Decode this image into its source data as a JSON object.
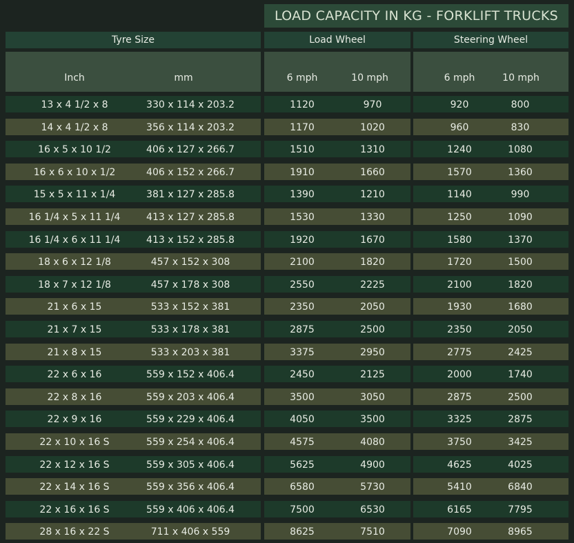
{
  "title": "LOAD CAPACITY IN KG - FORKLIFT TRUCKS",
  "headers": {
    "tyre_size": "Tyre Size",
    "load_wheel": "Load Wheel",
    "steering_wheel": "Steering Wheel"
  },
  "subheaders": {
    "inch": "Inch",
    "mm": "mm",
    "load_6": "6 mph",
    "load_10": "10 mph",
    "steer_6": "6 mph",
    "steer_10": "10 mph"
  },
  "rows": [
    {
      "inch": "13 x 4 1/2 x 8",
      "mm": "330 x 114 x 203.2",
      "load_6": "1120",
      "load_10": "970",
      "steer_6": "920",
      "steer_10": "800"
    },
    {
      "inch": "14 x 4 1/2 x 8",
      "mm": "356 x 114 x 203.2",
      "load_6": "1170",
      "load_10": "1020",
      "steer_6": "960",
      "steer_10": "830"
    },
    {
      "inch": "16 x 5 x 10 1/2",
      "mm": "406 x 127 x 266.7",
      "load_6": "1510",
      "load_10": "1310",
      "steer_6": "1240",
      "steer_10": "1080"
    },
    {
      "inch": "16 x 6 x 10 x 1/2",
      "mm": "406 x 152 x 266.7",
      "load_6": "1910",
      "load_10": "1660",
      "steer_6": "1570",
      "steer_10": "1360"
    },
    {
      "inch": "15 x 5 x 11 x 1/4",
      "mm": "381 x 127 x 285.8",
      "load_6": "1390",
      "load_10": "1210",
      "steer_6": "1140",
      "steer_10": "990"
    },
    {
      "inch": "16 1/4 x 5 x 11 1/4",
      "mm": "413 x 127 x 285.8",
      "load_6": "1530",
      "load_10": "1330",
      "steer_6": "1250",
      "steer_10": "1090"
    },
    {
      "inch": "16 1/4 x 6 x 11 1/4",
      "mm": "413 x 152 x 285.8",
      "load_6": "1920",
      "load_10": "1670",
      "steer_6": "1580",
      "steer_10": "1370"
    },
    {
      "inch": "18 x 6 x 12 1/8",
      "mm": "457 x 152 x 308",
      "load_6": "2100",
      "load_10": "1820",
      "steer_6": "1720",
      "steer_10": "1500"
    },
    {
      "inch": "18 x 7 x 12 1/8",
      "mm": "457 x 178 x 308",
      "load_6": "2550",
      "load_10": "2225",
      "steer_6": "2100",
      "steer_10": "1820"
    },
    {
      "inch": "21 x 6 x 15",
      "mm": "533 x 152 x 381",
      "load_6": "2350",
      "load_10": "2050",
      "steer_6": "1930",
      "steer_10": "1680"
    },
    {
      "inch": "21 x 7 x 15",
      "mm": "533 x 178 x 381",
      "load_6": "2875",
      "load_10": "2500",
      "steer_6": "2350",
      "steer_10": "2050"
    },
    {
      "inch": "21 x 8 x 15",
      "mm": "533 x 203 x 381",
      "load_6": "3375",
      "load_10": "2950",
      "steer_6": "2775",
      "steer_10": "2425"
    },
    {
      "inch": "22 x 6 x 16",
      "mm": "559 x 152 x 406.4",
      "load_6": "2450",
      "load_10": "2125",
      "steer_6": "2000",
      "steer_10": "1740"
    },
    {
      "inch": "22 x 8 x 16",
      "mm": "559 x 203 x 406.4",
      "load_6": "3500",
      "load_10": "3050",
      "steer_6": "2875",
      "steer_10": "2500"
    },
    {
      "inch": "22 x 9 x 16",
      "mm": "559 x 229 x 406.4",
      "load_6": "4050",
      "load_10": "3500",
      "steer_6": "3325",
      "steer_10": "2875"
    },
    {
      "inch": "22 x 10 x 16 S",
      "mm": "559 x 254 x 406.4",
      "load_6": "4575",
      "load_10": "4080",
      "steer_6": "3750",
      "steer_10": "3425"
    },
    {
      "inch": "22 x 12 x 16 S",
      "mm": "559 x 305 x 406.4",
      "load_6": "5625",
      "load_10": "4900",
      "steer_6": "4625",
      "steer_10": "4025"
    },
    {
      "inch": "22 x 14 x 16 S",
      "mm": "559 x 356 x 406.4",
      "load_6": "6580",
      "load_10": "5730",
      "steer_6": "5410",
      "steer_10": "6840"
    },
    {
      "inch": "22 x 16 x 16 S",
      "mm": "559 x 406 x 406.4",
      "load_6": "7500",
      "load_10": "6530",
      "steer_6": "6165",
      "steer_10": "7795"
    },
    {
      "inch": "28 x 16 x 22 S",
      "mm": "711 x 406 x 559",
      "load_6": "8625",
      "load_10": "7510",
      "steer_6": "7090",
      "steer_10": "8965"
    }
  ]
}
